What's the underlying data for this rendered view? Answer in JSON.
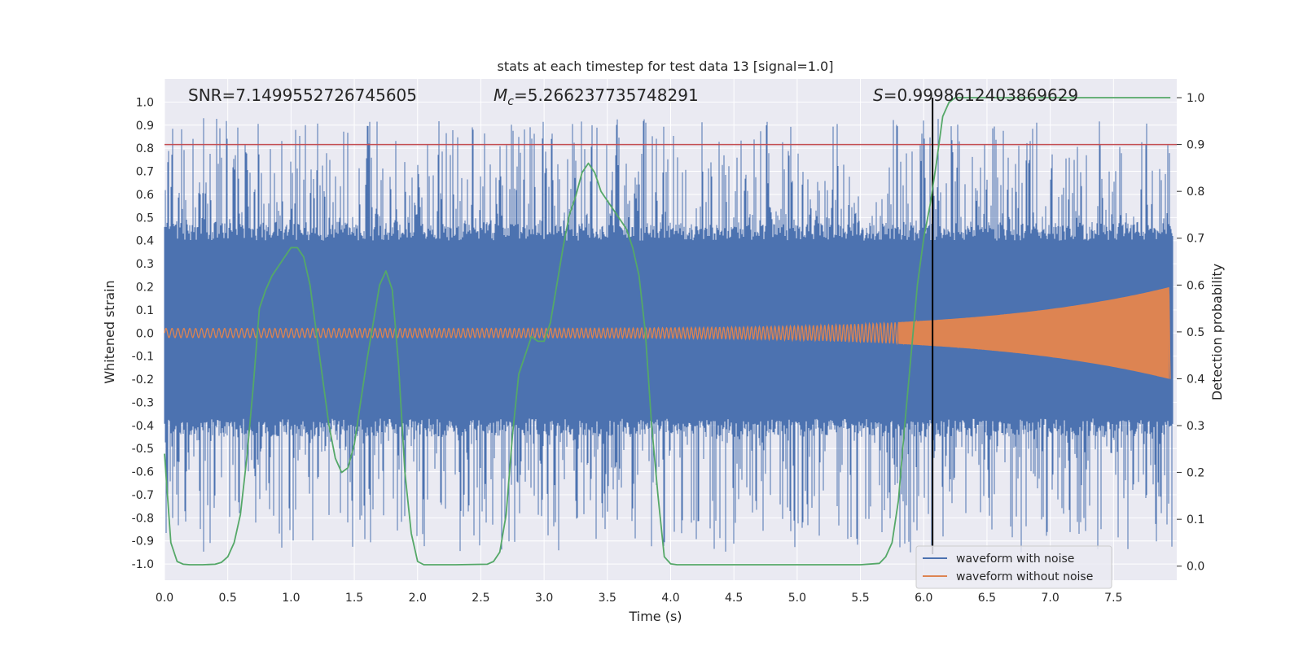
{
  "chart_data": {
    "type": "line",
    "title": "stats at each timestep for test data 13 [signal=1.0]",
    "xlabel": "Time (s)",
    "ylabel": "Whitened strain",
    "y2label": "Detection probability",
    "xlim": [
      0.0,
      8.0
    ],
    "ylim": [
      -1.07,
      1.1
    ],
    "y2lim": [
      -0.03,
      1.04
    ],
    "xticks": [
      0.0,
      0.5,
      1.0,
      1.5,
      2.0,
      2.5,
      3.0,
      3.5,
      4.0,
      4.5,
      5.0,
      5.5,
      6.0,
      6.5,
      7.0,
      7.5
    ],
    "xtick_labels": [
      "0.0",
      "0.5",
      "1.0",
      "1.5",
      "2.0",
      "2.5",
      "3.0",
      "3.5",
      "4.0",
      "4.5",
      "5.0",
      "5.5",
      "6.0",
      "6.5",
      "7.0",
      "7.5"
    ],
    "yticks": [
      1.0,
      0.9,
      0.8,
      0.7,
      0.6,
      0.5,
      0.4,
      0.3,
      0.2,
      0.1,
      0.0,
      -0.1,
      -0.2,
      -0.3,
      -0.4,
      -0.5,
      -0.6,
      -0.7,
      -0.8,
      -0.9,
      -1.0
    ],
    "ytick_labels": [
      "1.0",
      "0.9",
      "0.8",
      "0.7",
      "0.6",
      "0.5",
      "0.4",
      "0.3",
      "0.2",
      "0.1",
      "0.0",
      "-0.1",
      "-0.2",
      "-0.3",
      "-0.4",
      "-0.5",
      "-0.6",
      "-0.7",
      "-0.8",
      "-0.9",
      "-1.0"
    ],
    "y2ticks": [
      1.0,
      0.9,
      0.8,
      0.7,
      0.6,
      0.5,
      0.4,
      0.3,
      0.2,
      0.1,
      0.0
    ],
    "y2tick_labels": [
      "1.0",
      "0.9",
      "0.8",
      "0.7",
      "0.6",
      "0.5",
      "0.4",
      "0.3",
      "0.2",
      "0.1",
      "0.0"
    ],
    "grid": true,
    "stats": {
      "snr": "SNR=7.1499552726745605",
      "mc_symbol": "M",
      "mc_sub": "c",
      "mc_value": "=5.266237735748291",
      "s_symbol": "S",
      "s_value": "=0.9998612403869629"
    },
    "threshold": {
      "axis": "right",
      "value": 0.9
    },
    "detection_time": 6.07,
    "noise_envelope": {
      "upper_max": 0.93,
      "lower_min": -0.95,
      "dense_band": [
        -0.37,
        0.4
      ]
    },
    "series": [
      {
        "name": "waveform with noise",
        "axis": "left",
        "color": "#4c72b0",
        "style": "noisy-strain"
      },
      {
        "name": "waveform without noise",
        "axis": "left",
        "color": "#dd8452",
        "style": "chirp",
        "start_amplitude": 0.02,
        "end_amplitude": 0.2,
        "end_time": 7.95
      },
      {
        "name": "detection probability",
        "axis": "right",
        "color": "#55a868",
        "x": [
          0.0,
          0.05,
          0.1,
          0.15,
          0.2,
          0.3,
          0.4,
          0.45,
          0.5,
          0.55,
          0.6,
          0.65,
          0.7,
          0.75,
          0.8,
          0.85,
          0.9,
          0.95,
          1.0,
          1.05,
          1.1,
          1.15,
          1.2,
          1.25,
          1.3,
          1.35,
          1.4,
          1.45,
          1.5,
          1.55,
          1.6,
          1.65,
          1.7,
          1.75,
          1.8,
          1.85,
          1.9,
          1.95,
          2.0,
          2.05,
          2.1,
          2.3,
          2.55,
          2.6,
          2.65,
          2.7,
          2.75,
          2.8,
          2.85,
          2.9,
          2.95,
          3.0,
          3.05,
          3.1,
          3.15,
          3.2,
          3.25,
          3.3,
          3.35,
          3.4,
          3.45,
          3.5,
          3.55,
          3.6,
          3.65,
          3.7,
          3.75,
          3.8,
          3.85,
          3.9,
          3.95,
          4.0,
          4.05,
          4.1,
          4.5,
          5.0,
          5.5,
          5.65,
          5.7,
          5.75,
          5.8,
          5.85,
          5.9,
          5.95,
          6.0,
          6.05,
          6.1,
          6.15,
          6.2,
          6.25,
          7.5,
          7.95
        ],
        "values": [
          0.24,
          0.05,
          0.01,
          0.004,
          0.003,
          0.003,
          0.004,
          0.008,
          0.02,
          0.05,
          0.11,
          0.23,
          0.38,
          0.55,
          0.59,
          0.62,
          0.64,
          0.66,
          0.68,
          0.68,
          0.66,
          0.6,
          0.5,
          0.4,
          0.3,
          0.23,
          0.2,
          0.21,
          0.26,
          0.35,
          0.44,
          0.52,
          0.6,
          0.63,
          0.59,
          0.43,
          0.2,
          0.07,
          0.01,
          0.003,
          0.003,
          0.003,
          0.004,
          0.01,
          0.03,
          0.11,
          0.28,
          0.41,
          0.45,
          0.49,
          0.48,
          0.48,
          0.52,
          0.6,
          0.68,
          0.75,
          0.79,
          0.84,
          0.86,
          0.84,
          0.8,
          0.78,
          0.76,
          0.74,
          0.72,
          0.68,
          0.62,
          0.5,
          0.3,
          0.15,
          0.02,
          0.005,
          0.003,
          0.003,
          0.003,
          0.003,
          0.003,
          0.006,
          0.02,
          0.05,
          0.14,
          0.3,
          0.45,
          0.6,
          0.7,
          0.77,
          0.86,
          0.96,
          0.99,
          1.0,
          1.0,
          1.0
        ]
      }
    ]
  },
  "legend": {
    "items": [
      {
        "label": "waveform with noise",
        "color": "#4c72b0"
      },
      {
        "label": "waveform without noise",
        "color": "#dd8452"
      }
    ]
  },
  "colors": {
    "plot_bg": "#eaeaf2",
    "grid": "#ffffff",
    "threshold_line": "#c44e52",
    "detection_line": "#000000"
  }
}
